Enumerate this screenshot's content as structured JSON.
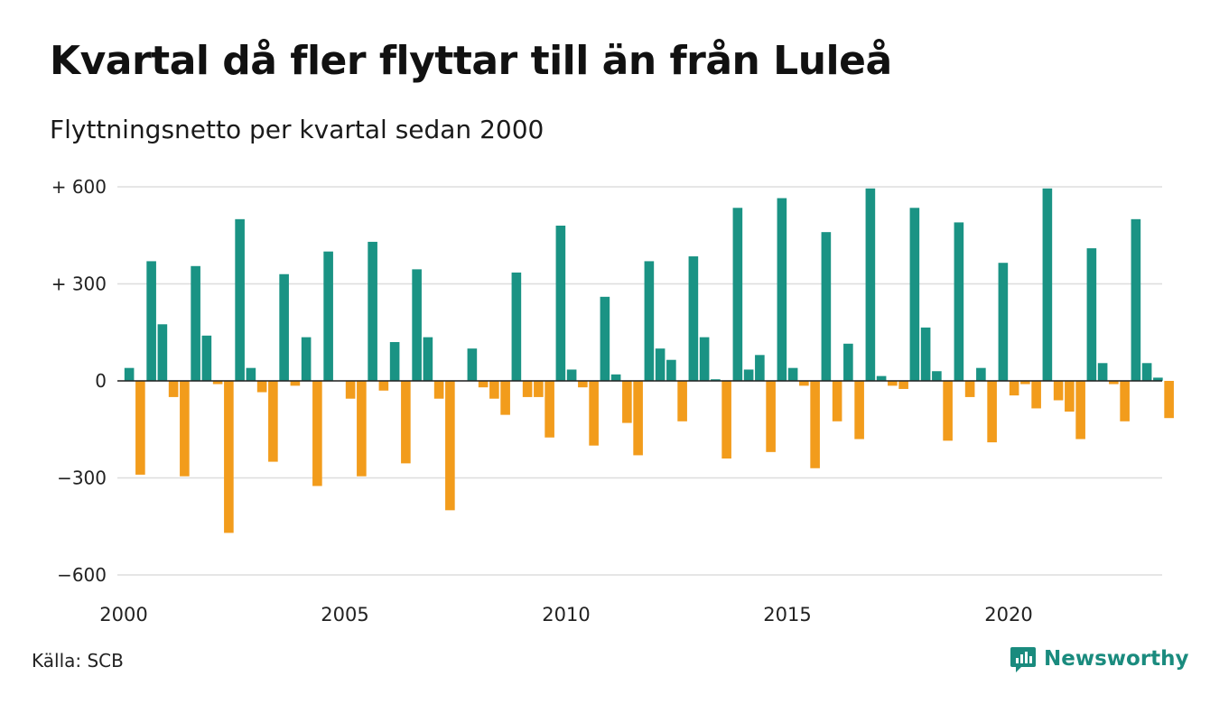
{
  "header": {
    "title": "Kvartal då fler flyttar till än från Luleå",
    "subtitle": "Flyttningsnetto per kvartal sedan 2000"
  },
  "footer": {
    "source": "Källa: SCB",
    "brand": "Newsworthy"
  },
  "colors": {
    "positive": "#1a9384",
    "negative": "#f29c1c",
    "grid": "#dddddd",
    "brand": "#1a8b7e"
  },
  "chart_data": {
    "type": "bar",
    "title": "Kvartal då fler flyttar till än från Luleå",
    "subtitle": "Flyttningsnetto per kvartal sedan 2000",
    "xlabel": "",
    "ylabel": "",
    "ylim": [
      -600,
      600
    ],
    "yticks": [
      600,
      300,
      0,
      -300,
      -600
    ],
    "ytick_labels": [
      "+ 600",
      "+ 300",
      "0",
      "−300",
      "−600"
    ],
    "xticks": [
      2000,
      2005,
      2010,
      2015,
      2020
    ],
    "xtick_labels": [
      "2000",
      "2005",
      "2010",
      "2015",
      "2020"
    ],
    "x_start": 2000,
    "periods_per_year": 4,
    "grid": true,
    "values": [
      40,
      -290,
      370,
      175,
      -50,
      -295,
      355,
      140,
      -10,
      -470,
      500,
      40,
      -35,
      -250,
      330,
      -15,
      135,
      -325,
      400,
      0,
      -55,
      -295,
      430,
      -30,
      120,
      -255,
      345,
      135,
      -55,
      -400,
      0,
      100,
      -20,
      -55,
      -105,
      335,
      -50,
      -50,
      -175,
      480,
      35,
      -20,
      -200,
      260,
      20,
      -130,
      -230,
      370,
      100,
      65,
      -125,
      385,
      135,
      5,
      -240,
      535,
      35,
      80,
      -220,
      565,
      40,
      -15,
      -270,
      460,
      -125,
      115,
      -180,
      595,
      15,
      -15,
      -25,
      535,
      165,
      30,
      -185,
      490,
      -50,
      40,
      -190,
      365,
      -45,
      -10,
      -85,
      595,
      -60,
      -95,
      -180,
      410,
      55,
      -10,
      -125,
      500,
      55,
      10,
      -115,
      0
    ]
  }
}
